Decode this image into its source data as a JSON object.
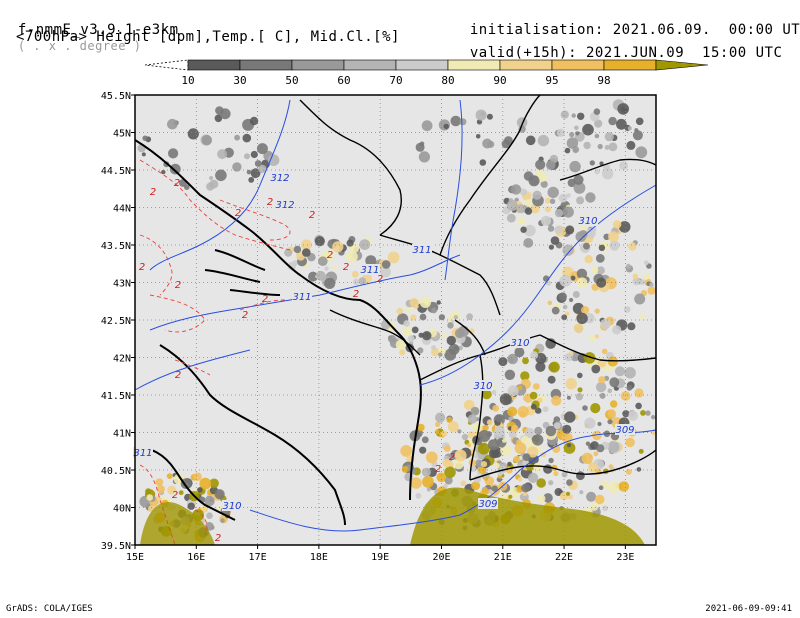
{
  "header": {
    "model": "f-nmmE_v3.9.1-e3km",
    "model_note": "( . x . degree )",
    "fields": "<700hPa> Height [dpm],Temp.[ C], Mid.Cl.[%]",
    "init_label": "initialisation:",
    "init_value": "2021.06.09.  00:00 UTC",
    "valid_label": "valid(+15h):",
    "valid_value": "2021.JUN.09  15:00 UTC"
  },
  "colorbar": {
    "ticks": [
      "10",
      "30",
      "50",
      "60",
      "70",
      "80",
      "90",
      "95",
      "98"
    ],
    "colors": [
      "#5a5a5a",
      "#787878",
      "#999999",
      "#b4b4b4",
      "#cccccc",
      "#f0eab4",
      "#f0d28c",
      "#f0c060",
      "#e6b02a",
      "#a09600"
    ]
  },
  "map": {
    "lat_labels": [
      "45.5N",
      "45N",
      "44.5N",
      "44N",
      "43.5N",
      "43N",
      "42.5N",
      "42N",
      "41.5N",
      "41N",
      "40.5N",
      "40N",
      "39.5N"
    ],
    "lon_labels": [
      "15E",
      "16E",
      "17E",
      "18E",
      "19E",
      "20E",
      "21E",
      "22E",
      "23E"
    ],
    "height_contours": [
      "312",
      "312",
      "311",
      "311",
      "311",
      "310",
      "310",
      "310",
      "309",
      "309",
      "310",
      "311"
    ],
    "temp_labels": [
      "2",
      "2",
      "2",
      "2",
      "2",
      "2",
      "2",
      "2",
      "2",
      "2",
      "2",
      "2",
      "2",
      "2",
      "2",
      "2",
      "2",
      "2"
    ]
  },
  "footer": {
    "left": "GrADS: COLA/IGES",
    "right": "2021-06-09-09:41"
  }
}
